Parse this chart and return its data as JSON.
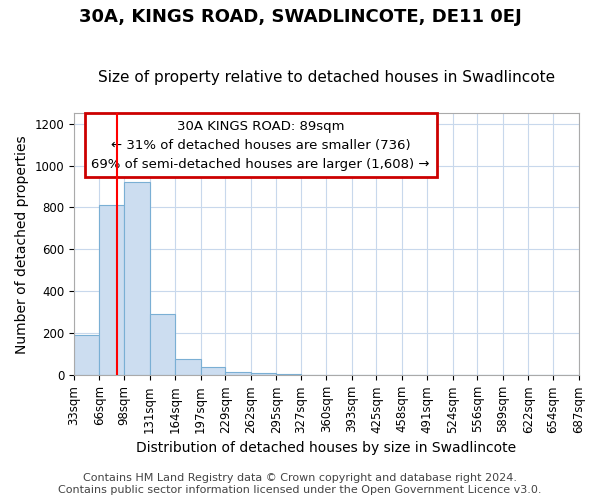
{
  "title": "30A, KINGS ROAD, SWADLINCOTE, DE11 0EJ",
  "subtitle": "Size of property relative to detached houses in Swadlincote",
  "xlabel": "Distribution of detached houses by size in Swadlincote",
  "ylabel": "Number of detached properties",
  "bar_color": "#ccddf0",
  "bar_edge_color": "#7aafd4",
  "annotation_box_text": "30A KINGS ROAD: 89sqm\n← 31% of detached houses are smaller (736)\n69% of semi-detached houses are larger (1,608) →",
  "annotation_box_color": "#ffffff",
  "annotation_box_edge_color": "#cc0000",
  "red_line_x": 89,
  "bin_edges": [
    33,
    66,
    98,
    131,
    164,
    197,
    229,
    262,
    295,
    327,
    360,
    393,
    425,
    458,
    491,
    524,
    556,
    589,
    622,
    654,
    687
  ],
  "bar_heights": [
    190,
    810,
    920,
    290,
    80,
    38,
    18,
    12,
    8,
    0,
    0,
    0,
    0,
    0,
    0,
    0,
    0,
    0,
    0,
    0
  ],
  "ylim": [
    0,
    1250
  ],
  "yticks": [
    0,
    200,
    400,
    600,
    800,
    1000,
    1200
  ],
  "footer_line1": "Contains HM Land Registry data © Crown copyright and database right 2024.",
  "footer_line2": "Contains public sector information licensed under the Open Government Licence v3.0.",
  "background_color": "#ffffff",
  "plot_background_color": "#ffffff",
  "grid_color": "#c8d8ec",
  "title_fontsize": 13,
  "subtitle_fontsize": 11,
  "axis_label_fontsize": 10,
  "tick_fontsize": 8.5,
  "footer_fontsize": 8,
  "annot_fontsize": 9.5
}
